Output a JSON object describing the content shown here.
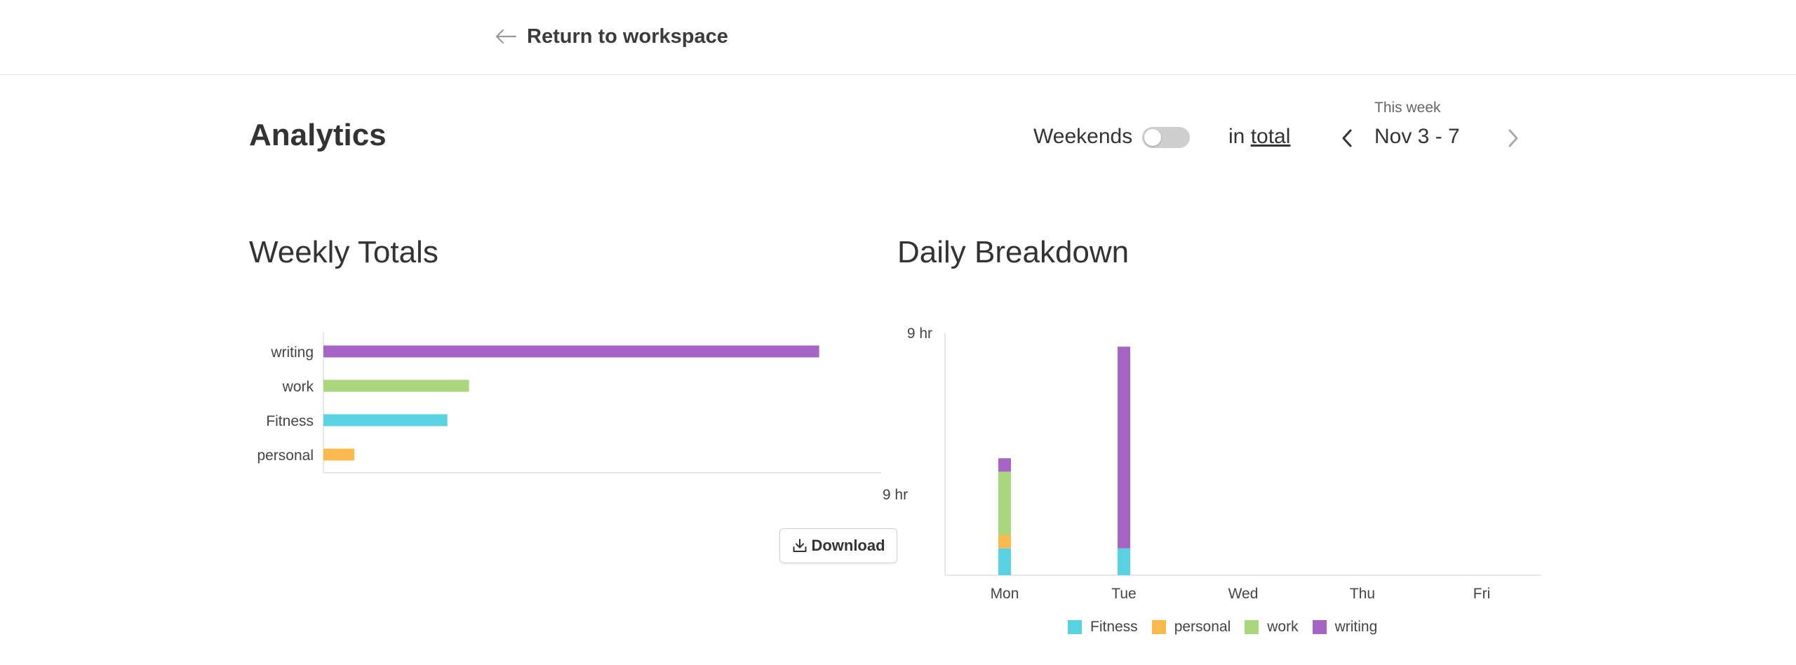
{
  "header": {
    "back_label": "Return to workspace"
  },
  "page": {
    "title": "Analytics"
  },
  "controls": {
    "weekends_label": "Weekends",
    "weekends_on": false,
    "in_prefix": "in",
    "total_label": "total",
    "week_caption": "This week",
    "week_range": "Nov 3 - 7"
  },
  "colors": {
    "Fitness": "#59d3e3",
    "personal": "#fcb94e",
    "work": "#aad67e",
    "writing": "#a665c4"
  },
  "sections": {
    "weekly_title": "Weekly Totals",
    "daily_title": "Daily Breakdown"
  },
  "download_label": "Download",
  "chart_data": [
    {
      "type": "bar",
      "orientation": "horizontal",
      "title": "Weekly Totals",
      "categories": [
        "writing",
        "work",
        "Fitness",
        "personal"
      ],
      "values": [
        8.0,
        2.35,
        2.0,
        0.5
      ],
      "unit": "hr",
      "xlim": [
        0,
        9
      ],
      "max_tick_label": "9 hr"
    },
    {
      "type": "bar",
      "stacked": true,
      "title": "Daily Breakdown",
      "categories": [
        "Mon",
        "Tue",
        "Wed",
        "Thu",
        "Fri"
      ],
      "series": [
        {
          "name": "Fitness",
          "values": [
            1.0,
            1.0,
            0,
            0,
            0
          ]
        },
        {
          "name": "personal",
          "values": [
            0.5,
            0,
            0,
            0,
            0
          ]
        },
        {
          "name": "work",
          "values": [
            2.35,
            0,
            0,
            0,
            0
          ]
        },
        {
          "name": "writing",
          "values": [
            0.5,
            7.5,
            0,
            0,
            0
          ]
        }
      ],
      "unit": "hr",
      "ylim": [
        0,
        9
      ],
      "max_tick_label": "9 hr",
      "legend": [
        "Fitness",
        "personal",
        "work",
        "writing"
      ],
      "legend_position": "bottom"
    }
  ]
}
